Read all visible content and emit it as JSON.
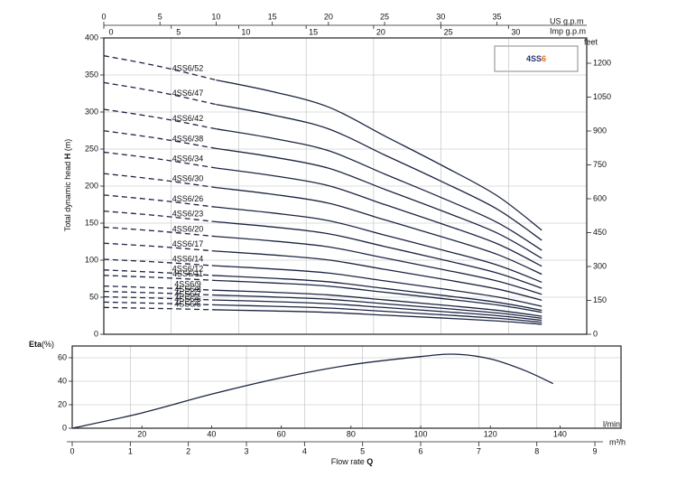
{
  "chart_data": [
    {
      "type": "pump-curves",
      "badge": {
        "text": "4SS",
        "highlight": "6"
      },
      "y_label": [
        "Total dynamic head ",
        "H",
        " (m)"
      ],
      "x_label": "US g.p.m",
      "x2_label": "Imp g.p.m",
      "y2_label": "feet",
      "xlim": [
        0,
        43
      ],
      "xticks": [
        0,
        5,
        10,
        15,
        20,
        25,
        30,
        35
      ],
      "x2lim": [
        0,
        35.8
      ],
      "x2ticks": [
        0,
        5,
        10,
        15,
        20,
        25,
        30
      ],
      "ylim": [
        0,
        400
      ],
      "yticks": [
        0,
        50,
        100,
        150,
        200,
        250,
        300,
        350,
        400
      ],
      "y2lim": [
        0,
        1312
      ],
      "y2ticks": [
        0,
        150,
        300,
        450,
        600,
        750,
        900,
        1050,
        1200
      ],
      "grid": true,
      "color": "#1c2442",
      "dashed_below_x": 10,
      "x": [
        0,
        5,
        10,
        15,
        20,
        25,
        30,
        35,
        39
      ],
      "series": [
        {
          "name": "4SS6/52",
          "values": [
            376.0,
            361.4,
            343.2,
            327.6,
            306.8,
            267.8,
            228.8,
            187.2,
            140.4
          ]
        },
        {
          "name": "4SS6/47",
          "values": [
            339.8,
            326.7,
            310.2,
            296.1,
            277.3,
            242.1,
            206.8,
            169.2,
            126.9
          ]
        },
        {
          "name": "4SS6/42",
          "values": [
            303.7,
            291.9,
            277.2,
            264.6,
            247.8,
            216.3,
            184.8,
            151.2,
            113.4
          ]
        },
        {
          "name": "4SS6/38",
          "values": [
            274.7,
            264.1,
            250.8,
            239.4,
            224.2,
            195.7,
            167.2,
            136.8,
            102.6
          ]
        },
        {
          "name": "4SS6/34",
          "values": [
            245.8,
            236.3,
            224.4,
            214.2,
            200.6,
            175.1,
            149.6,
            122.4,
            91.8
          ]
        },
        {
          "name": "4SS6/30",
          "values": [
            216.9,
            208.5,
            198,
            189,
            177,
            154.5,
            132,
            108,
            81
          ]
        },
        {
          "name": "4SS6/26",
          "values": [
            188.0,
            180.7,
            171.6,
            163.8,
            153.4,
            133.9,
            114.4,
            93.6,
            70.2
          ]
        },
        {
          "name": "4SS6/23",
          "values": [
            166.3,
            159.9,
            151.8,
            144.9,
            135.7,
            118.5,
            101.2,
            82.8,
            62.1
          ]
        },
        {
          "name": "4SS6/20",
          "values": [
            144.6,
            139,
            132,
            126,
            118,
            103,
            88,
            72,
            54
          ]
        },
        {
          "name": "4SS6/17",
          "values": [
            122.9,
            118.2,
            112.2,
            107.1,
            100.3,
            87.6,
            74.8,
            61.2,
            45.9
          ]
        },
        {
          "name": "4SS6/14",
          "values": [
            101.2,
            97.3,
            92.4,
            88.2,
            82.6,
            72.1,
            61.6,
            50.4,
            37.8
          ]
        },
        {
          "name": "4SS6/12",
          "values": [
            86.8,
            83.4,
            79.2,
            75.6,
            70.8,
            61.8,
            52.8,
            43.2,
            32.4
          ]
        },
        {
          "name": "4SS6/11",
          "values": [
            79.5,
            76.5,
            72.6,
            69.3,
            64.9,
            56.7,
            48.4,
            39.6,
            29.7
          ]
        },
        {
          "name": "4SS6/9",
          "values": [
            65.1,
            62.6,
            59.4,
            56.7,
            53.1,
            46.4,
            39.6,
            32.4,
            24.3
          ]
        },
        {
          "name": "4SS6/8",
          "values": [
            57.8,
            55.6,
            52.8,
            50.4,
            47.2,
            41.2,
            35.2,
            28.8,
            21.6
          ]
        },
        {
          "name": "4SS6/7",
          "values": [
            50.6,
            48.7,
            46.2,
            44.1,
            41.3,
            36.1,
            30.8,
            25.2,
            18.9
          ]
        },
        {
          "name": "4SS6/6",
          "values": [
            43.4,
            41.7,
            39.6,
            37.8,
            35.4,
            30.9,
            26.4,
            21.6,
            16.2
          ]
        },
        {
          "name": "4SS6/5",
          "values": [
            36.2,
            34.8,
            33,
            31.5,
            29.5,
            25.8,
            22,
            18,
            13.5
          ]
        }
      ]
    },
    {
      "type": "line",
      "y_label": [
        "Eta",
        "(%)"
      ],
      "x_label": "l/min",
      "x2_label": "m³/h",
      "title": [
        "Flow rate ",
        "Q"
      ],
      "xlim": [
        0,
        157.5
      ],
      "xticks": [
        20,
        40,
        60,
        80,
        100,
        120,
        140
      ],
      "x2lim": [
        0,
        9.45
      ],
      "x2ticks": [
        0,
        1,
        2,
        3,
        4,
        5,
        6,
        7,
        8,
        9
      ],
      "ylim": [
        0,
        70
      ],
      "yticks": [
        0,
        20,
        40,
        60
      ],
      "grid": true,
      "color": "#1c2442",
      "x": [
        0,
        20,
        40,
        60,
        80,
        100,
        110,
        120,
        130,
        138
      ],
      "values": [
        0,
        13,
        29,
        43,
        54,
        61,
        63,
        59,
        49,
        38
      ]
    }
  ]
}
